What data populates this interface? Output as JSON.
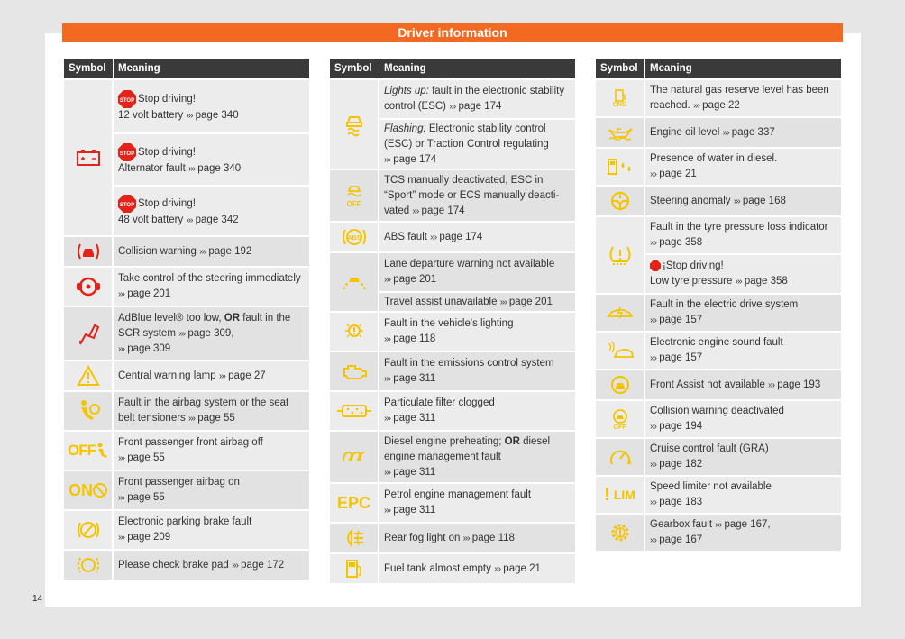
{
  "header": {
    "title": "Driver information"
  },
  "page_number": "14",
  "columns_header": {
    "symbol": "Symbol",
    "meaning": "Meaning"
  },
  "col1": {
    "r1": {
      "stop": "Stop driving!",
      "a": "12 volt battery",
      "a_ref": "page 340",
      "b": "Alternator fault",
      "b_ref": "page 340",
      "c": "48 volt battery",
      "c_ref": "page 342"
    },
    "r2": {
      "text": "Collision warning",
      "ref": "page 192"
    },
    "r3": {
      "text": "Take control of the steering immediately",
      "ref": "page 201"
    },
    "r4": {
      "text1": "AdBlue level® too low, ",
      "or": "OR",
      "text2": " fault in the SCR system",
      "ref1": "page 309,",
      "ref2": "page 309"
    },
    "r5": {
      "text": "Central warning lamp",
      "ref": "page 27"
    },
    "r6": {
      "text": "Fault in the airbag system or the seat belt tensioners",
      "ref": "page 55"
    },
    "r7": {
      "text": "Front passenger front airbag off",
      "ref": "page 55",
      "icon_text": "OFF"
    },
    "r8": {
      "text": "Front passenger airbag on",
      "ref": "page 55",
      "icon_text": "ON"
    },
    "r9": {
      "text": "Electronic parking brake fault",
      "ref": "page 209"
    },
    "r10": {
      "text": "Please check brake pad",
      "ref": "page 172"
    }
  },
  "col2": {
    "r1": {
      "a_it": "Lights up:",
      "a": " fault in the electronic stability control (ESC)",
      "a_ref": "page 174",
      "b_it": "Flashing:",
      "b": " Electronic stability control (ESC) or Traction Control regulating",
      "b_ref": "page 174"
    },
    "r2": {
      "text": "TCS manually deactivated, ESC in “Sport” mode or ECS manually deacti-vated",
      "ref": "page 174",
      "icon_text": "OFF"
    },
    "r3": {
      "text": "ABS fault",
      "ref": "page 174",
      "icon_text": "ABS"
    },
    "r4": {
      "a": "Lane departure warning not available",
      "a_ref": "page 201",
      "b": "Travel assist unavailable",
      "b_ref": "page 201"
    },
    "r5": {
      "text": "Fault in the vehicle's lighting",
      "ref": "page 118"
    },
    "r6": {
      "text": "Fault in the emissions control system",
      "ref": "page 311"
    },
    "r7": {
      "text": "Particulate filter clogged",
      "ref": "page 311"
    },
    "r8": {
      "text1": "Diesel engine preheating; ",
      "or": "OR",
      "text2": " diesel engine management fault",
      "ref": "page 311"
    },
    "r9": {
      "text": "Petrol engine management fault",
      "ref": "page 311",
      "icon_text": "EPC"
    },
    "r10": {
      "text": "Rear fog light on",
      "ref": "page 118"
    },
    "r11": {
      "text": "Fuel tank almost empty",
      "ref": "page 21"
    }
  },
  "col3": {
    "r1": {
      "text": "The natural gas reserve level has been reached.",
      "ref": "page 22",
      "icon_text": "CNG"
    },
    "r2": {
      "text": "Engine oil level",
      "ref": "page 337"
    },
    "r3": {
      "text": "Presence of water in diesel.",
      "ref": "page 21"
    },
    "r4": {
      "text": "Steering anomaly",
      "ref": "page 168"
    },
    "r5": {
      "a": "Fault in the tyre pressure loss indicator",
      "a_ref": "page 358",
      "stop": "¡Stop driving!",
      "b": "Low tyre pressure",
      "b_ref": "page 358"
    },
    "r6": {
      "text": "Fault in the electric drive system",
      "ref": "page 157"
    },
    "r7": {
      "text": "Electronic engine sound fault",
      "ref": "page 157"
    },
    "r8": {
      "text": "Front Assist not available",
      "ref": "page 193"
    },
    "r9": {
      "text": "Collision warning deactivated",
      "ref": "page 194",
      "icon_text": "OFF"
    },
    "r10": {
      "text": "Cruise control fault (GRA)",
      "ref": "page 182"
    },
    "r11": {
      "text": "Speed limiter not available",
      "ref": "page 183",
      "icon_text": "LIM"
    },
    "r12": {
      "text": "Gearbox fault",
      "ref1": "page 167,",
      "ref2": "page 167"
    }
  },
  "arrows": "›››",
  "colors": {
    "orange": "#f26a21",
    "red": "#e2231a",
    "yellow": "#f5c400",
    "header": "#3a3a3a"
  }
}
